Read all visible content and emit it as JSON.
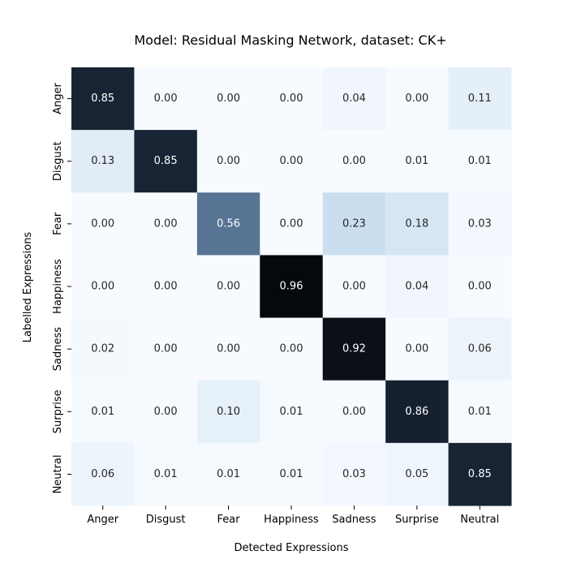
{
  "chart_data": {
    "type": "heatmap",
    "title": "Model: Residual Masking Network, dataset: CK+",
    "xlabel": "Detected Expressions",
    "ylabel": "Labelled Expressions",
    "x_categories": [
      "Anger",
      "Disgust",
      "Fear",
      "Happiness",
      "Sadness",
      "Surprise",
      "Neutral"
    ],
    "y_categories": [
      "Anger",
      "Disgust",
      "Fear",
      "Happiness",
      "Sadness",
      "Surprise",
      "Neutral"
    ],
    "values": [
      [
        0.85,
        0.0,
        0.0,
        0.0,
        0.04,
        0.0,
        0.11
      ],
      [
        0.13,
        0.85,
        0.0,
        0.0,
        0.0,
        0.01,
        0.01
      ],
      [
        0.0,
        0.0,
        0.56,
        0.0,
        0.23,
        0.18,
        0.03
      ],
      [
        0.0,
        0.0,
        0.0,
        0.96,
        0.0,
        0.04,
        0.0
      ],
      [
        0.02,
        0.0,
        0.0,
        0.0,
        0.92,
        0.0,
        0.06
      ],
      [
        0.01,
        0.0,
        0.1,
        0.01,
        0.0,
        0.86,
        0.01
      ],
      [
        0.06,
        0.01,
        0.01,
        0.01,
        0.03,
        0.05,
        0.85
      ]
    ],
    "value_format": "0.00",
    "colormap": "bone_r",
    "colorbar": false,
    "grid": false
  }
}
